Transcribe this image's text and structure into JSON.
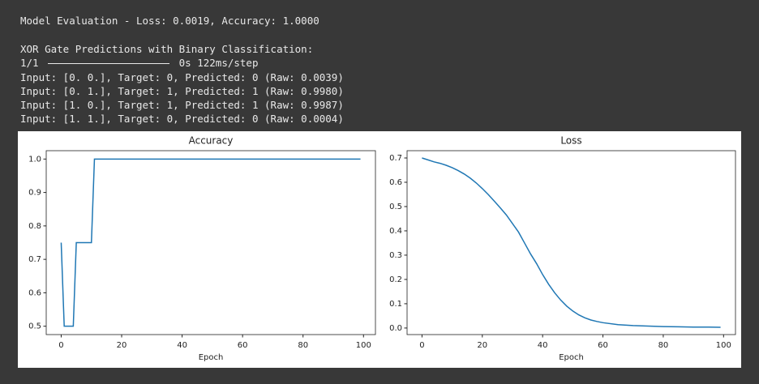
{
  "console": {
    "evaluation": "Model Evaluation - Loss: 0.0019, Accuracy: 1.0000",
    "heading": "XOR Gate Predictions with Binary Classification:",
    "progress": {
      "step": "1/1",
      "timing": "0s 122ms/step"
    },
    "predictions": [
      "Input: [0. 0.], Target: 0, Predicted: 0 (Raw: 0.0039)",
      "Input: [0. 1.], Target: 1, Predicted: 1 (Raw: 0.9980)",
      "Input: [1. 0.], Target: 1, Predicted: 1 (Raw: 0.9987)",
      "Input: [1. 1.], Target: 0, Predicted: 0 (Raw: 0.0004)"
    ]
  },
  "chart_data": [
    {
      "type": "line",
      "title": "Accuracy",
      "x_label": "Epoch",
      "color": "#1f77b4",
      "x": [
        0,
        1,
        4,
        5,
        10,
        11,
        99
      ],
      "values": [
        0.75,
        0.5,
        0.5,
        0.75,
        0.75,
        1,
        1
      ],
      "xlim": [
        -4.95,
        103.95
      ],
      "xticks": [
        0,
        20,
        40,
        60,
        80,
        100
      ],
      "ylim": [
        0.475,
        1.025
      ],
      "yticks": [
        0.5,
        0.6,
        0.7,
        0.8,
        0.9,
        {
          "value": 1,
          "label": "1.0"
        }
      ]
    },
    {
      "type": "line",
      "title": "Loss",
      "x_label": "Epoch",
      "color": "#1f77b4",
      "x": [
        0,
        2,
        4,
        6,
        8,
        10,
        12,
        14,
        16,
        18,
        20,
        22,
        24,
        26,
        28,
        30,
        32,
        34,
        36,
        38,
        40,
        42,
        44,
        46,
        48,
        50,
        52,
        54,
        56,
        58,
        60,
        65,
        70,
        75,
        80,
        85,
        90,
        95,
        99
      ],
      "values": [
        0.7,
        0.692,
        0.684,
        0.678,
        0.67,
        0.66,
        0.648,
        0.634,
        0.617,
        0.597,
        0.574,
        0.549,
        0.522,
        0.494,
        0.465,
        0.43,
        0.395,
        0.35,
        0.305,
        0.265,
        0.22,
        0.18,
        0.145,
        0.115,
        0.09,
        0.07,
        0.054,
        0.042,
        0.033,
        0.027,
        0.022,
        0.014,
        0.01,
        0.008,
        0.006,
        0.005,
        0.004,
        0.004,
        0.003
      ],
      "xlim": [
        -4.95,
        103.95
      ],
      "xticks": [
        0,
        20,
        40,
        60,
        80,
        100
      ],
      "ylim": [
        -0.027,
        0.73
      ],
      "yticks": [
        {
          "value": 0,
          "label": "0.0"
        },
        0.1,
        0.2,
        0.3,
        0.4,
        0.5,
        0.6,
        0.7
      ]
    }
  ]
}
